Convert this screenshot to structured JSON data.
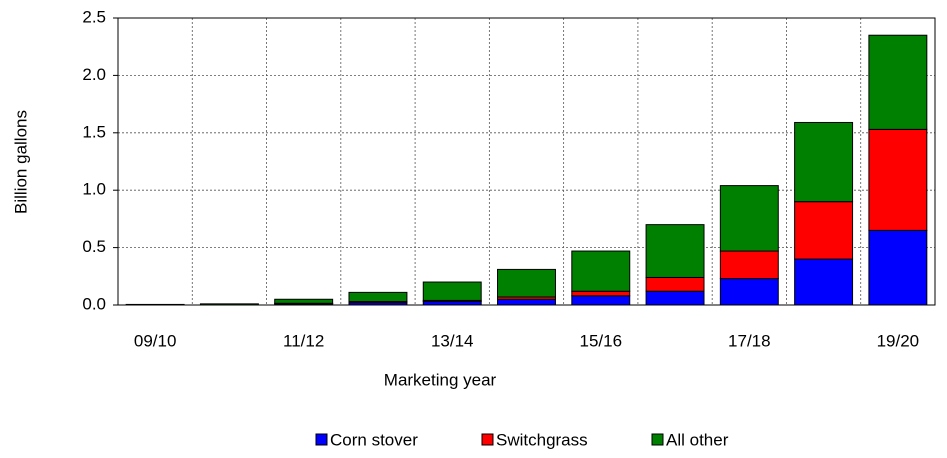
{
  "chart_data": {
    "type": "stacked_bar",
    "x_label": "Marketing year",
    "y_label": "Billion gallons",
    "categories": [
      "09/10",
      null,
      "11/12",
      null,
      "13/14",
      null,
      "15/16",
      null,
      "17/18",
      null,
      "19/20"
    ],
    "series": [
      {
        "name": "Corn stover",
        "color": "#0000ff",
        "values": [
          0,
          0,
          0.01,
          0.02,
          0.03,
          0.05,
          0.08,
          0.12,
          0.23,
          0.4,
          0.65
        ]
      },
      {
        "name": "Switchgrass",
        "color": "#ff0000",
        "values": [
          0,
          0,
          0.005,
          0.01,
          0.01,
          0.02,
          0.04,
          0.12,
          0.24,
          0.5,
          0.88
        ]
      },
      {
        "name": "All other",
        "color": "#008000",
        "values": [
          0.005,
          0.01,
          0.035,
          0.08,
          0.16,
          0.24,
          0.35,
          0.46,
          0.57,
          0.69,
          0.82
        ]
      }
    ],
    "ylim": [
      0,
      2.5
    ],
    "yticks": [
      {
        "value": 0,
        "label": "0.0"
      },
      0.5,
      {
        "value": 1,
        "label": "1.0"
      },
      1.5,
      {
        "value": 2,
        "label": "2.0"
      },
      2.5
    ],
    "grid": true,
    "legend": "bottom"
  }
}
